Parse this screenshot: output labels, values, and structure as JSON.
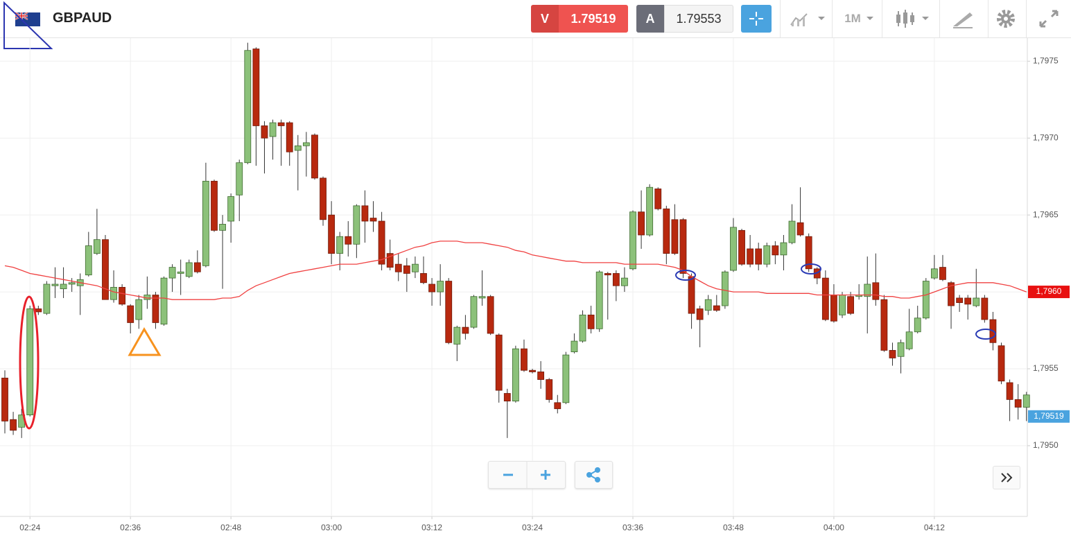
{
  "header": {
    "symbol": "GBPAUD",
    "sell": {
      "letter": "V",
      "price": 1.79519
    },
    "buy": {
      "letter": "A",
      "price": 1.79553
    },
    "interval": "1M"
  },
  "chart_data": {
    "type": "candlestick",
    "categories": [
      null,
      null,
      null,
      "02:24",
      null,
      null,
      null,
      null,
      null,
      null,
      null,
      null,
      null,
      null,
      null,
      "02:36",
      null,
      null,
      null,
      null,
      null,
      null,
      null,
      null,
      null,
      null,
      null,
      "02:48",
      null,
      null,
      null,
      null,
      null,
      null,
      null,
      null,
      null,
      null,
      null,
      "03:00",
      null,
      null,
      null,
      null,
      null,
      null,
      null,
      null,
      null,
      null,
      null,
      "03:12",
      null,
      null,
      null,
      null,
      null,
      null,
      null,
      null,
      null,
      null,
      null,
      "03:24",
      null,
      null,
      null,
      null,
      null,
      null,
      null,
      null,
      null,
      null,
      null,
      "03:36",
      null,
      null,
      null,
      null,
      null,
      null,
      null,
      null,
      null,
      null,
      null,
      "03:48",
      null,
      null,
      null,
      null,
      null,
      null,
      null,
      null,
      null,
      null,
      null,
      "04:00",
      null,
      null,
      null,
      null,
      null,
      null,
      null,
      null,
      null,
      null,
      null,
      "04:12",
      null,
      null,
      null,
      null,
      null,
      null,
      null,
      null,
      null,
      null,
      null
    ],
    "open": [
      1.79544,
      1.79517,
      1.79512,
      1.7952,
      1.79589,
      1.79586,
      1.79604,
      1.79602,
      1.79605,
      1.79604,
      1.79611,
      1.79625,
      1.79634,
      1.79595,
      1.79603,
      1.79591,
      1.79582,
      1.79595,
      1.79598,
      1.79579,
      1.79609,
      1.79612,
      1.7961,
      1.79619,
      1.79617,
      1.79672,
      1.7964,
      1.79646,
      1.79663,
      1.79684,
      1.79758,
      1.79708,
      1.79701,
      1.7971,
      1.7971,
      1.79692,
      1.79695,
      1.79702,
      1.79674,
      1.7965,
      1.79625,
      1.79636,
      1.79631,
      1.79656,
      1.79648,
      1.79646,
      1.79625,
      1.79618,
      1.79617,
      1.79613,
      1.79612,
      1.79605,
      1.796,
      1.79607,
      1.79566,
      1.79577,
      1.79577,
      1.79596,
      1.79597,
      1.79572,
      1.79534,
      1.79529,
      1.79563,
      1.79549,
      1.79548,
      1.79543,
      1.79528,
      1.79528,
      1.79561,
      1.79568,
      1.79585,
      1.79576,
      1.79612,
      1.79612,
      1.79604,
      1.79615,
      1.79652,
      1.79637,
      1.79667,
      1.79654,
      1.79647,
      1.79647,
      1.7961,
      1.79589,
      1.79588,
      1.79591,
      1.79591,
      1.79614,
      1.7964,
      1.79628,
      1.79628,
      1.79618,
      1.7963,
      1.79624,
      1.79632,
      1.79645,
      1.79636,
      1.79615,
      1.79609,
      1.79598,
      1.79585,
      1.79597,
      1.79597,
      1.79597,
      1.79606,
      1.79595,
      1.79562,
      1.79558,
      1.79563,
      1.79574,
      1.79583,
      1.79609,
      1.79616,
      1.79606,
      1.79596,
      1.79596,
      1.79591,
      1.79596,
      1.79582,
      1.79565,
      1.79541,
      1.7953,
      1.79525
    ],
    "high": [
      1.79549,
      1.79522,
      1.79524,
      1.79591,
      1.79591,
      1.79607,
      1.79616,
      1.79616,
      1.79609,
      1.79612,
      1.79639,
      1.79654,
      1.79637,
      1.79614,
      1.79605,
      1.79592,
      1.79598,
      1.7961,
      1.796,
      1.7961,
      1.79618,
      1.79621,
      1.79621,
      1.79627,
      1.79684,
      1.79673,
      1.7965,
      1.79664,
      1.79686,
      1.79762,
      1.79759,
      1.79711,
      1.79712,
      1.79712,
      1.79711,
      1.79702,
      1.79704,
      1.79703,
      1.79675,
      1.79659,
      1.79639,
      1.79646,
      1.79657,
      1.79666,
      1.79659,
      1.79652,
      1.79634,
      1.79625,
      1.79622,
      1.79623,
      1.79623,
      1.79609,
      1.79618,
      1.79609,
      1.79578,
      1.79585,
      1.79598,
      1.79614,
      1.79598,
      1.79573,
      1.79537,
      1.79565,
      1.79569,
      1.7955,
      1.79555,
      1.79544,
      1.79533,
      1.79561,
      1.79573,
      1.79588,
      1.79591,
      1.79614,
      1.79613,
      1.79614,
      1.79616,
      1.79653,
      1.79666,
      1.7967,
      1.79668,
      1.79656,
      1.79657,
      1.79648,
      1.79612,
      1.79591,
      1.79598,
      1.79598,
      1.79614,
      1.79648,
      1.79641,
      1.79637,
      1.79632,
      1.79632,
      1.79633,
      1.79637,
      1.79657,
      1.79668,
      1.79638,
      1.79616,
      1.79614,
      1.79605,
      1.796,
      1.796,
      1.79605,
      1.79623,
      1.79625,
      1.79598,
      1.79567,
      1.79569,
      1.79589,
      1.79591,
      1.79609,
      1.79624,
      1.79624,
      1.79607,
      1.79598,
      1.79598,
      1.79615,
      1.79598,
      1.79587,
      1.79567,
      1.79543,
      1.7954,
      1.79535
    ],
    "low": [
      1.79508,
      1.79507,
      1.79505,
      1.79519,
      1.79585,
      1.79585,
      1.79596,
      1.79596,
      1.796,
      1.79585,
      1.7961,
      1.79624,
      1.79595,
      1.79593,
      1.79591,
      1.79573,
      1.79576,
      1.79589,
      1.79576,
      1.79578,
      1.796,
      1.79598,
      1.79609,
      1.79612,
      1.79616,
      1.79639,
      1.79602,
      1.79632,
      1.79646,
      1.79683,
      1.79682,
      1.79677,
      1.79686,
      1.79682,
      1.79682,
      1.79666,
      1.79675,
      1.79673,
      1.79643,
      1.79618,
      1.79614,
      1.79623,
      1.79622,
      1.79632,
      1.79639,
      1.79614,
      1.79614,
      1.79607,
      1.796,
      1.79609,
      1.79605,
      1.79591,
      1.79591,
      1.79566,
      1.79555,
      1.79569,
      1.79576,
      1.79591,
      1.79572,
      1.79528,
      1.79505,
      1.79528,
      1.79548,
      1.79547,
      1.79537,
      1.79528,
      1.79521,
      1.79527,
      1.7956,
      1.79567,
      1.79573,
      1.79574,
      1.79582,
      1.79594,
      1.796,
      1.79614,
      1.79628,
      1.79636,
      1.79653,
      1.79618,
      1.79624,
      1.79609,
      1.79576,
      1.79564,
      1.79585,
      1.79587,
      1.79589,
      1.79613,
      1.79617,
      1.79616,
      1.79614,
      1.79616,
      1.79618,
      1.79614,
      1.79631,
      1.79636,
      1.79613,
      1.79605,
      1.79581,
      1.7958,
      1.79583,
      1.79585,
      1.79595,
      1.79573,
      1.79591,
      1.79561,
      1.79552,
      1.79547,
      1.79562,
      1.79573,
      1.79582,
      1.79608,
      1.79607,
      1.79576,
      1.79587,
      1.79582,
      1.7959,
      1.7958,
      1.79562,
      1.7954,
      1.79516,
      1.79517,
      1.79516
    ],
    "close": [
      1.79516,
      1.7951,
      1.7952,
      1.79589,
      1.79587,
      1.79605,
      1.79605,
      1.79605,
      1.79606,
      1.79608,
      1.7963,
      1.79634,
      1.79595,
      1.79603,
      1.79592,
      1.7958,
      1.79595,
      1.79598,
      1.7958,
      1.79609,
      1.79616,
      1.79613,
      1.79619,
      1.79613,
      1.79672,
      1.7964,
      1.79644,
      1.79662,
      1.79684,
      1.79757,
      1.79708,
      1.797,
      1.7971,
      1.79708,
      1.79691,
      1.79695,
      1.79697,
      1.79674,
      1.79647,
      1.79625,
      1.79636,
      1.79631,
      1.79656,
      1.79646,
      1.79646,
      1.79618,
      1.79616,
      1.79613,
      1.79612,
      1.79618,
      1.79606,
      1.796,
      1.79607,
      1.79567,
      1.79577,
      1.79573,
      1.79597,
      1.79597,
      1.79573,
      1.79536,
      1.79529,
      1.79563,
      1.79549,
      1.79548,
      1.79543,
      1.7953,
      1.79524,
      1.79559,
      1.79568,
      1.79585,
      1.79576,
      1.79613,
      1.79611,
      1.79604,
      1.79609,
      1.79652,
      1.79637,
      1.79668,
      1.79654,
      1.79625,
      1.79625,
      1.79612,
      1.79586,
      1.79582,
      1.79595,
      1.79588,
      1.79613,
      1.79642,
      1.79618,
      1.79618,
      1.79618,
      1.7963,
      1.79624,
      1.79632,
      1.79646,
      1.79637,
      1.79615,
      1.79609,
      1.79582,
      1.79581,
      1.79598,
      1.79586,
      1.79598,
      1.79605,
      1.79595,
      1.79562,
      1.79557,
      1.79567,
      1.79574,
      1.79583,
      1.79607,
      1.79615,
      1.79608,
      1.79591,
      1.79593,
      1.79592,
      1.79596,
      1.79582,
      1.79567,
      1.79542,
      1.7953,
      1.79525,
      1.79533
    ],
    "up_color": "#8cc17a",
    "down_color": "#b8290f",
    "ma": {
      "color": "#f04040",
      "values": [
        1.79617,
        1.79616,
        1.79614,
        1.79612,
        1.79611,
        1.7961,
        1.79609,
        1.79608,
        1.79607,
        1.79606,
        1.79605,
        1.79604,
        1.79602,
        1.796,
        1.79599,
        1.79598,
        1.79597,
        1.79596,
        1.79596,
        1.79596,
        1.79595,
        1.79595,
        1.79595,
        1.79595,
        1.79595,
        1.79595,
        1.79596,
        1.79596,
        1.79597,
        1.79601,
        1.79604,
        1.79606,
        1.79608,
        1.7961,
        1.79612,
        1.79613,
        1.79614,
        1.79615,
        1.79616,
        1.79617,
        1.79618,
        1.79618,
        1.79618,
        1.79619,
        1.7962,
        1.79621,
        1.79623,
        1.79625,
        1.79627,
        1.79629,
        1.7963,
        1.79632,
        1.79633,
        1.79633,
        1.79633,
        1.79632,
        1.79632,
        1.79632,
        1.79631,
        1.7963,
        1.79629,
        1.79627,
        1.79626,
        1.79624,
        1.79623,
        1.79622,
        1.79621,
        1.7962,
        1.7962,
        1.79619,
        1.79619,
        1.79619,
        1.79619,
        1.79619,
        1.79618,
        1.79618,
        1.79618,
        1.79618,
        1.79618,
        1.79617,
        1.79616,
        1.79614,
        1.7961,
        1.79607,
        1.79604,
        1.79602,
        1.79601,
        1.796,
        1.796,
        1.796,
        1.796,
        1.79599,
        1.79599,
        1.79599,
        1.79599,
        1.79599,
        1.79599,
        1.79598,
        1.79598,
        1.79598,
        1.79598,
        1.79598,
        1.79598,
        1.79598,
        1.79598,
        1.79597,
        1.79597,
        1.79596,
        1.79596,
        1.79597,
        1.79598,
        1.796,
        1.79602,
        1.79604,
        1.79605,
        1.79606,
        1.79606,
        1.79606,
        1.79606,
        1.79605,
        1.79604,
        1.79602,
        1.796
      ]
    },
    "ma_label": {
      "value": 1.796,
      "label": "1,7960"
    },
    "last_price_label": {
      "value": 1.79519,
      "label": "1,79519"
    },
    "ylim": [
      1.79454,
      1.79765
    ],
    "yticks": [
      {
        "value": 1.795,
        "label": "1,7950"
      },
      {
        "value": 1.7955,
        "label": "1,7955"
      },
      {
        "value": 1.796,
        "label": "1,7960"
      },
      {
        "value": 1.7965,
        "label": "1,7965"
      },
      {
        "value": 1.797,
        "label": "1,7970"
      },
      {
        "value": 1.7975,
        "label": "1,7975"
      }
    ],
    "grid": true
  }
}
